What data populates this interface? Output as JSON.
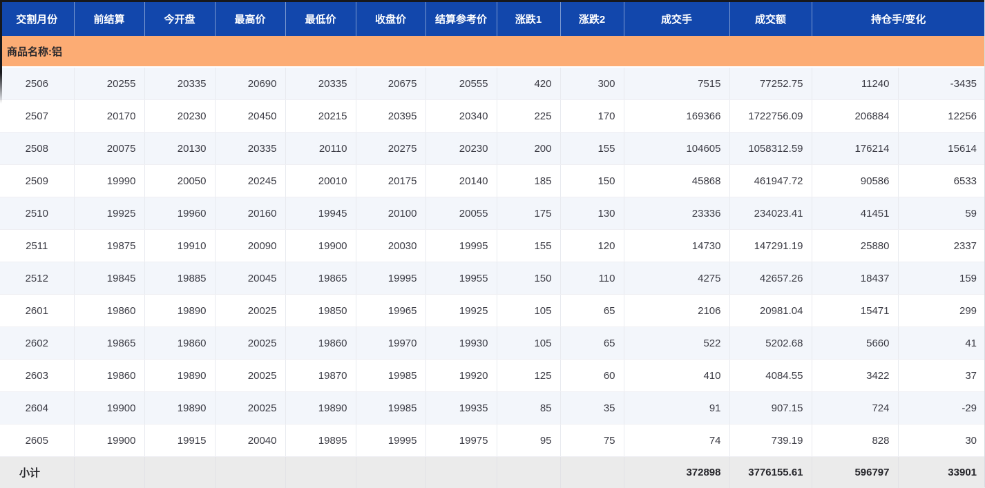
{
  "colors": {
    "header_bg": "#1247AC",
    "group_row_bg": "#FCAC74",
    "row_alt_bg": "#F3F6FB",
    "subtotal_bg": "#EBEBEB",
    "cell_text": "#3B3B44"
  },
  "table": {
    "headers": [
      {
        "id": "delivery-month",
        "label": "交割月份",
        "colspan": 1
      },
      {
        "id": "prev-settlement",
        "label": "前结算",
        "colspan": 1
      },
      {
        "id": "open",
        "label": "今开盘",
        "colspan": 1
      },
      {
        "id": "high",
        "label": "最高价",
        "colspan": 1
      },
      {
        "id": "low",
        "label": "最低价",
        "colspan": 1
      },
      {
        "id": "close",
        "label": "收盘价",
        "colspan": 1
      },
      {
        "id": "settlement-ref",
        "label": "结算参考价",
        "colspan": 1
      },
      {
        "id": "change1",
        "label": "涨跌1",
        "colspan": 1
      },
      {
        "id": "change2",
        "label": "涨跌2",
        "colspan": 1
      },
      {
        "id": "volume",
        "label": "成交手",
        "colspan": 1
      },
      {
        "id": "turnover",
        "label": "成交额",
        "colspan": 1
      },
      {
        "id": "open-interest-change",
        "label": "持仓手/变化",
        "colspan": 2
      }
    ],
    "group_row": {
      "label": "商品名称:铝"
    },
    "rows": [
      [
        "2506",
        "20255",
        "20335",
        "20690",
        "20335",
        "20675",
        "20555",
        "420",
        "300",
        "7515",
        "77252.75",
        "11240",
        "-3435"
      ],
      [
        "2507",
        "20170",
        "20230",
        "20450",
        "20215",
        "20395",
        "20340",
        "225",
        "170",
        "169366",
        "1722756.09",
        "206884",
        "12256"
      ],
      [
        "2508",
        "20075",
        "20130",
        "20335",
        "20110",
        "20275",
        "20230",
        "200",
        "155",
        "104605",
        "1058312.59",
        "176214",
        "15614"
      ],
      [
        "2509",
        "19990",
        "20050",
        "20245",
        "20010",
        "20175",
        "20140",
        "185",
        "150",
        "45868",
        "461947.72",
        "90586",
        "6533"
      ],
      [
        "2510",
        "19925",
        "19960",
        "20160",
        "19945",
        "20100",
        "20055",
        "175",
        "130",
        "23336",
        "234023.41",
        "41451",
        "59"
      ],
      [
        "2511",
        "19875",
        "19910",
        "20090",
        "19900",
        "20030",
        "19995",
        "155",
        "120",
        "14730",
        "147291.19",
        "25880",
        "2337"
      ],
      [
        "2512",
        "19845",
        "19885",
        "20045",
        "19865",
        "19995",
        "19955",
        "150",
        "110",
        "4275",
        "42657.26",
        "18437",
        "159"
      ],
      [
        "2601",
        "19860",
        "19890",
        "20025",
        "19850",
        "19965",
        "19925",
        "105",
        "65",
        "2106",
        "20981.04",
        "15471",
        "299"
      ],
      [
        "2602",
        "19865",
        "19860",
        "20025",
        "19860",
        "19970",
        "19930",
        "105",
        "65",
        "522",
        "5202.68",
        "5660",
        "41"
      ],
      [
        "2603",
        "19860",
        "19890",
        "20025",
        "19870",
        "19985",
        "19920",
        "125",
        "60",
        "410",
        "4084.55",
        "3422",
        "37"
      ],
      [
        "2604",
        "19900",
        "19890",
        "20025",
        "19890",
        "19985",
        "19935",
        "85",
        "35",
        "91",
        "907.15",
        "724",
        "-29"
      ],
      [
        "2605",
        "19900",
        "19915",
        "20040",
        "19895",
        "19995",
        "19975",
        "95",
        "75",
        "74",
        "739.19",
        "828",
        "30"
      ]
    ],
    "subtotal": {
      "label": "小计",
      "values": [
        "",
        "",
        "",
        "",
        "",
        "",
        "",
        "",
        "372898",
        "3776155.61",
        "596797",
        "33901"
      ]
    }
  }
}
